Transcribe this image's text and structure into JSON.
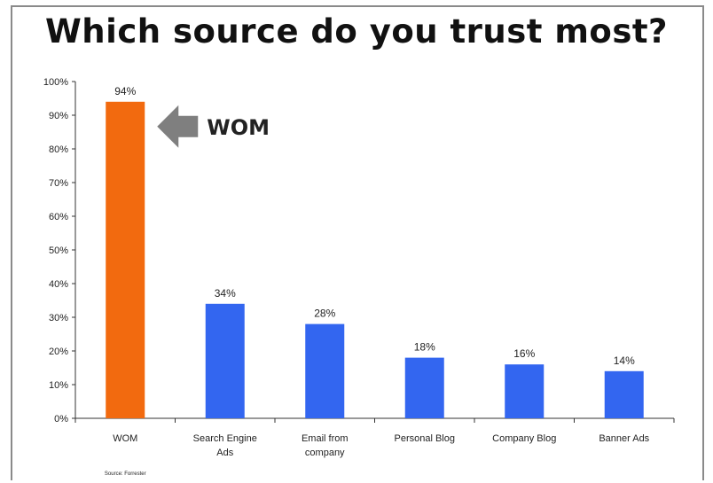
{
  "chart_data": {
    "type": "bar",
    "title": "Which source do you trust most?",
    "categories": [
      [
        "WOM"
      ],
      [
        "Search Engine",
        "Ads"
      ],
      [
        "Email from",
        "company"
      ],
      [
        "Personal Blog"
      ],
      [
        "Company Blog"
      ],
      [
        "Banner Ads"
      ]
    ],
    "values": [
      94,
      34,
      28,
      18,
      16,
      14
    ],
    "data_labels": [
      "94%",
      "34%",
      "28%",
      "18%",
      "16%",
      "14%"
    ],
    "bar_colors": [
      "#f26a0f",
      "#3366f0",
      "#3366f0",
      "#3366f0",
      "#3366f0",
      "#3366f0"
    ],
    "ylim": [
      0,
      100
    ],
    "yticks": [
      0,
      10,
      20,
      30,
      40,
      50,
      60,
      70,
      80,
      90,
      100
    ],
    "ytick_labels": [
      "0%",
      "10%",
      "20%",
      "30%",
      "40%",
      "50%",
      "60%",
      "70%",
      "80%",
      "90%",
      "100%"
    ],
    "grid": false,
    "annotation": {
      "text": "WOM",
      "arrow_color": "#7f7f7f",
      "points_to": "WOM"
    },
    "source_note": "Source: Forrester"
  }
}
